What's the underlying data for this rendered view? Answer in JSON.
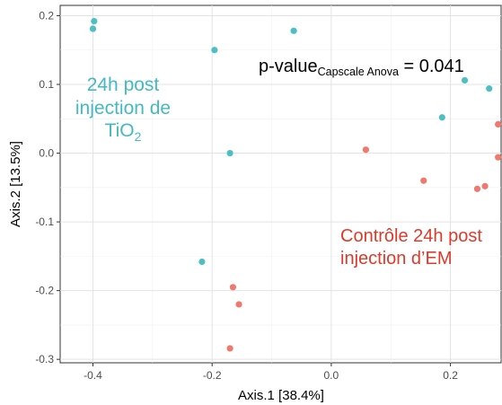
{
  "chart_data": {
    "type": "scatter",
    "xlabel": "Axis.1   [38.4%]",
    "ylabel": "Axis.2   [13.5%]",
    "xlim": [
      -0.455,
      0.285
    ],
    "ylim": [
      -0.305,
      0.215
    ],
    "grid": true,
    "xticks": [
      -0.4,
      -0.2,
      0.0,
      0.2
    ],
    "xtick_labels": [
      "-0.4",
      "-0.2",
      "0.0",
      "0.2"
    ],
    "yticks": [
      -0.3,
      -0.2,
      -0.1,
      0.0,
      0.1,
      0.2
    ],
    "ytick_labels": [
      "-0.3",
      "-0.2",
      "-0.1",
      "0.0",
      "0.1",
      "0.2"
    ],
    "series": [
      {
        "color": "#4dbfc4",
        "points": [
          {
            "x": -0.398,
            "y": 0.192
          },
          {
            "x": -0.4,
            "y": 0.181
          },
          {
            "x": -0.196,
            "y": 0.15
          },
          {
            "x": -0.063,
            "y": 0.178
          },
          {
            "x": -0.17,
            "y": 0.0
          },
          {
            "x": -0.217,
            "y": -0.158
          },
          {
            "x": 0.224,
            "y": 0.106
          },
          {
            "x": 0.265,
            "y": 0.094
          },
          {
            "x": 0.186,
            "y": 0.052
          }
        ]
      },
      {
        "color": "#f0786e",
        "points": [
          {
            "x": 0.058,
            "y": 0.005
          },
          {
            "x": 0.155,
            "y": -0.04
          },
          {
            "x": 0.245,
            "y": -0.052
          },
          {
            "x": 0.258,
            "y": -0.048
          },
          {
            "x": 0.28,
            "y": -0.006
          },
          {
            "x": 0.28,
            "y": 0.042
          },
          {
            "x": -0.165,
            "y": -0.195
          },
          {
            "x": -0.155,
            "y": -0.22
          },
          {
            "x": -0.17,
            "y": -0.284
          }
        ]
      }
    ],
    "annotations": {
      "teal": {
        "line1": "24h post",
        "line2": "injection de",
        "line3_main": "TiO",
        "line3_sub": "2",
        "color": "#45b9c2"
      },
      "pvalue": {
        "prefix": "p-value",
        "subscript": "Capscale Anova",
        "suffix": " = 0.041"
      },
      "red": {
        "line1": "Contrôle 24h post",
        "line2": "injection d’EM",
        "color": "#dc3a2a"
      }
    }
  }
}
